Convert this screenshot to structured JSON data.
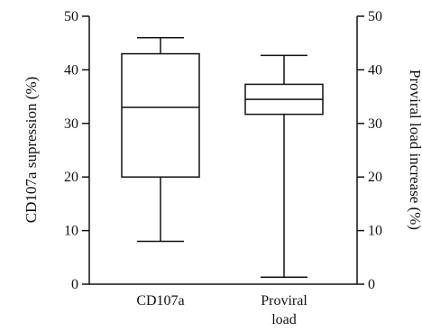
{
  "chart_data": {
    "type": "box",
    "categories": [
      "CD107a",
      "Proviral\nload"
    ],
    "series": [
      {
        "values": [
          {
            "min": 8,
            "q1": 20,
            "median": 33,
            "q3": 43,
            "max": 46
          },
          {
            "min": 1.3,
            "q1": 31.7,
            "median": 34.5,
            "q3": 37.3,
            "max": 42.7
          }
        ]
      }
    ],
    "y_left": {
      "label": "CD107a supression (%)",
      "ticks": [
        0,
        10,
        20,
        30,
        40,
        50
      ],
      "range": [
        0,
        50
      ]
    },
    "y_right": {
      "label": "Proviral load increase (%)",
      "ticks": [
        0,
        10,
        20,
        30,
        40,
        50
      ],
      "range": [
        0,
        50
      ]
    },
    "grid": false
  }
}
